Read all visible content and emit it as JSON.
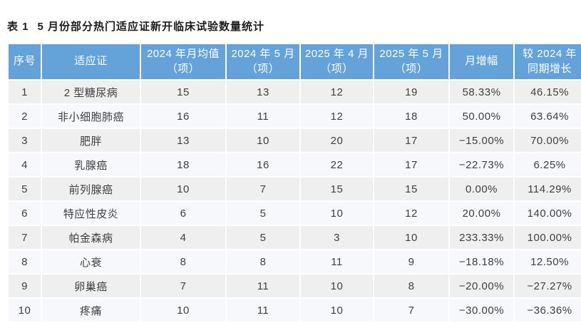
{
  "title": {
    "label": "表 1",
    "text": "5 月份部分热门适应证新开临床试验数量统计"
  },
  "colors": {
    "header_bg": "#63A3DA",
    "header_text": "#FFFFFF",
    "row_odd_bg": "#EFEFEF",
    "row_even_bg": "#F7F8FB",
    "cell_text": "#404040",
    "separator": "#FFFFFF"
  },
  "chart_data": {
    "type": "table",
    "title": "表 1 5 月份部分热门适应证新开临床试验数量统计",
    "columns": [
      [
        "序号"
      ],
      [
        "适应证"
      ],
      [
        "2024 年月均值",
        "（项）"
      ],
      [
        "2024 年 5 月",
        "（项）"
      ],
      [
        "2025 年 4 月",
        "（项）"
      ],
      [
        "2025 年 5 月",
        "（项）"
      ],
      [
        "月增幅"
      ],
      [
        "较 2024 年",
        "同期增长"
      ]
    ],
    "rows": [
      [
        "1",
        "2 型糖尿病",
        "15",
        "13",
        "12",
        "19",
        "58.33%",
        "46.15%"
      ],
      [
        "2",
        "非小细胞肺癌",
        "16",
        "11",
        "12",
        "18",
        "50.00%",
        "63.64%"
      ],
      [
        "3",
        "肥胖",
        "13",
        "10",
        "20",
        "17",
        "−15.00%",
        "70.00%"
      ],
      [
        "4",
        "乳腺癌",
        "18",
        "16",
        "22",
        "17",
        "−22.73%",
        "6.25%"
      ],
      [
        "5",
        "前列腺癌",
        "10",
        "7",
        "15",
        "15",
        "0.00%",
        "114.29%"
      ],
      [
        "6",
        "特应性皮炎",
        "6",
        "5",
        "10",
        "12",
        "20.00%",
        "140.00%"
      ],
      [
        "7",
        "帕金森病",
        "4",
        "5",
        "3",
        "10",
        "233.33%",
        "100.00%"
      ],
      [
        "8",
        "心衰",
        "8",
        "8",
        "11",
        "9",
        "−18.18%",
        "12.50%"
      ],
      [
        "9",
        "卵巢癌",
        "7",
        "11",
        "10",
        "8",
        "−20.00%",
        "−27.27%"
      ],
      [
        "10",
        "疼痛",
        "10",
        "11",
        "10",
        "7",
        "−30.00%",
        "−36.36%"
      ]
    ]
  }
}
